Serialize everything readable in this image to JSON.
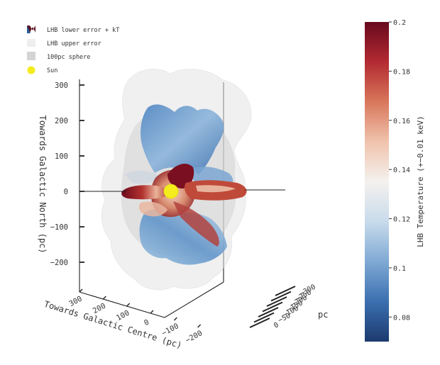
{
  "chart_data": {
    "type": "3d-surface",
    "legend": {
      "placement": "top-left",
      "entries": [
        {
          "label": "LHB lower error + kT",
          "swatch": "colormap"
        },
        {
          "label": "LHB upper error",
          "swatch": "#eeeeee"
        },
        {
          "label": "100pc sphere",
          "swatch": "#d4d4d4"
        },
        {
          "label": "Sun",
          "swatch": "#f4ec1c"
        }
      ]
    },
    "axes": {
      "z": {
        "label": "Towards Galactic North (pc)",
        "ticks": [
          "300",
          "200",
          "100",
          "0",
          "−100",
          "−200"
        ],
        "range": [
          -250,
          300
        ]
      },
      "x": {
        "label": "Towards Galactic Centre (pc)",
        "ticks": [
          "300",
          "200",
          "100",
          "0",
          "−100",
          "−200"
        ],
        "range": [
          -250,
          300
        ]
      },
      "y": {
        "label": "pc",
        "ticks": [
          "−300",
          "−250",
          "−200",
          "−150",
          "−100",
          "−50",
          "0"
        ],
        "range": [
          -300,
          0
        ]
      }
    },
    "sun": {
      "x": 0,
      "y": 0,
      "z": 0,
      "color": "#f4ec1c"
    },
    "colorbar": {
      "label": "LHB Temperature (+−0.01 keV)",
      "min": 0.07,
      "max": 0.2,
      "ticks": [
        0.2,
        0.18,
        0.16,
        0.14,
        0.12,
        0.1,
        0.08
      ],
      "tick_labels": [
        "0.2",
        "0.18",
        "0.16",
        "0.14",
        "0.12",
        "0.1",
        "0.08"
      ],
      "colormap": [
        "#1c3a6e",
        "#3b6fb0",
        "#7fa9d4",
        "#c8dbeb",
        "#f4f1ef",
        "#f0c3ac",
        "#d8775b",
        "#b32a32",
        "#68091d"
      ]
    }
  }
}
